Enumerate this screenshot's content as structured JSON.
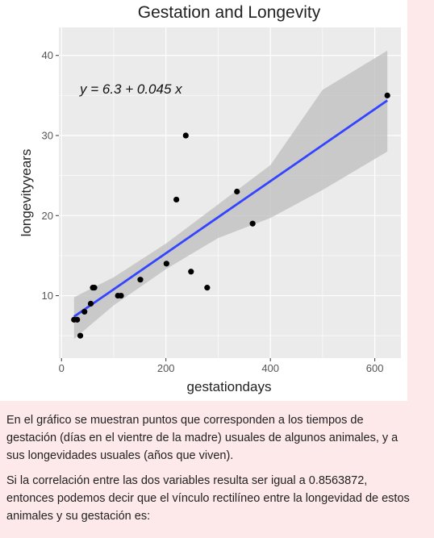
{
  "colors": {
    "page_background": "#fde8ea",
    "panel_background": "#ebebeb",
    "grid": "#ffffff",
    "points": "#000000",
    "regression_line": "#3344ff",
    "confidence_band": "#bdbdbd"
  },
  "chart_data": {
    "type": "scatter",
    "title": "Gestation and  Longevity",
    "xlabel": "gestationdays",
    "ylabel": "longevityyears",
    "xlim": [
      -5,
      650
    ],
    "ylim": [
      2.2,
      43.5
    ],
    "x_ticks": [
      0,
      200,
      400,
      600
    ],
    "y_ticks": [
      10,
      20,
      30,
      40
    ],
    "grid": true,
    "annotation": "y = 6.3 + 0.045  x",
    "points": [
      {
        "x": 24,
        "y": 7
      },
      {
        "x": 30,
        "y": 7
      },
      {
        "x": 36,
        "y": 5
      },
      {
        "x": 44,
        "y": 8
      },
      {
        "x": 56,
        "y": 9
      },
      {
        "x": 60,
        "y": 11
      },
      {
        "x": 63,
        "y": 11
      },
      {
        "x": 108,
        "y": 10
      },
      {
        "x": 114,
        "y": 10
      },
      {
        "x": 151,
        "y": 12
      },
      {
        "x": 201,
        "y": 14
      },
      {
        "x": 220,
        "y": 22
      },
      {
        "x": 238,
        "y": 30
      },
      {
        "x": 248,
        "y": 13
      },
      {
        "x": 279,
        "y": 11
      },
      {
        "x": 336,
        "y": 23
      },
      {
        "x": 366,
        "y": 19
      },
      {
        "x": 624,
        "y": 35
      }
    ],
    "regression": {
      "intercept": 6.3,
      "slope": 0.045,
      "x_range": [
        24,
        624
      ]
    },
    "confidence_band": [
      {
        "x": 24,
        "lower": 4.6,
        "upper": 9.8
      },
      {
        "x": 100,
        "lower": 8.8,
        "upper": 12.3
      },
      {
        "x": 200,
        "lower": 13.3,
        "upper": 16.5
      },
      {
        "x": 300,
        "lower": 17.2,
        "upper": 21.4
      },
      {
        "x": 400,
        "lower": 19.7,
        "upper": 26.3
      },
      {
        "x": 500,
        "lower": 23.2,
        "upper": 35.7
      },
      {
        "x": 624,
        "lower": 28.0,
        "upper": 40.6
      }
    ]
  },
  "question": {
    "paragraph1": "En el gráfico se muestran puntos que corresponden a los tiempos de gestación (días en el vientre de la madre) usuales de algunos animales, y a sus longevidades usuales (años que viven).",
    "paragraph2": "Si la correlación entre las dos variables resulta ser igual a 0.8563872, entonces podemos decir que el vínculo rectilíneo entre la longevidad de estos animales y su gestación es:"
  }
}
